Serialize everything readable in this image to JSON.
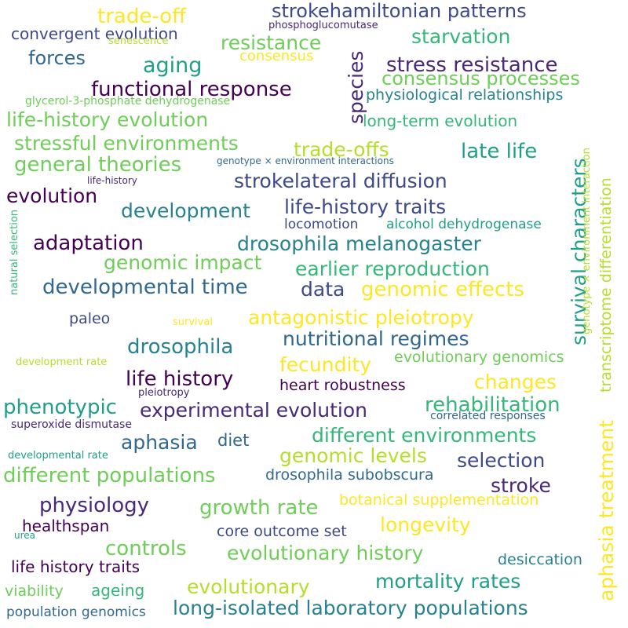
{
  "colors": {
    "dark_purple": "#440154",
    "indigo": "#482878",
    "blue": "#3e4989",
    "slate": "#31688e",
    "teal_blue": "#26828e",
    "teal": "#1f9e89",
    "green_teal": "#35b779",
    "green": "#6ece58",
    "lime": "#b5de2b",
    "yellow": "#fde725"
  },
  "words": [
    "trade-off",
    "strokehamiltonian patterns",
    "convergent evolution",
    "phosphoglucomutase",
    "senescence",
    "resistance",
    "starvation",
    "forces",
    "consensus",
    "aging",
    "stress resistance",
    "consensus processes",
    "functional response",
    "glycerol-3-phosphate dehydrogenase",
    "physiological relationships",
    "life-history evolution",
    "long-term evolution",
    "stressful environments",
    "trade-offs",
    "late life",
    "general theories",
    "genotype × environment interactions",
    "life-history",
    "strokelateral diffusion",
    "evolution",
    "development",
    "life-history traits",
    "locomotion",
    "alcohol dehydrogenase",
    "adaptation",
    "drosophila melanogaster",
    "genomic impact",
    "earlier reproduction",
    "developmental time",
    "data",
    "genomic effects",
    "paleo",
    "survival",
    "antagonistic pleiotropy",
    "drosophila",
    "nutritional regimes",
    "development rate",
    "fecundity",
    "evolutionary genomics",
    "life history",
    "changes",
    "pleiotropy",
    "heart robustness",
    "phenotypic",
    "experimental evolution",
    "rehabilitation",
    "superoxide dismutase",
    "correlated responses",
    "aphasia",
    "diet",
    "different environments",
    "genomic levels",
    "developmental rate",
    "selection",
    "different populations",
    "drosophila subobscura",
    "stroke",
    "physiology",
    "growth rate",
    "botanical supplementation",
    "healthspan",
    "longevity",
    "urea",
    "core outcome set",
    "controls",
    "evolutionary history",
    "life history traits",
    "desiccation",
    "viability",
    "ageing",
    "evolutionary",
    "mortality rates",
    "population genomics",
    "long-isolated laboratory populations",
    "species",
    "survival characters",
    "aphasia treatment",
    "transcriptome differentiation",
    "genotype × environment interaction",
    "natural selection"
  ]
}
